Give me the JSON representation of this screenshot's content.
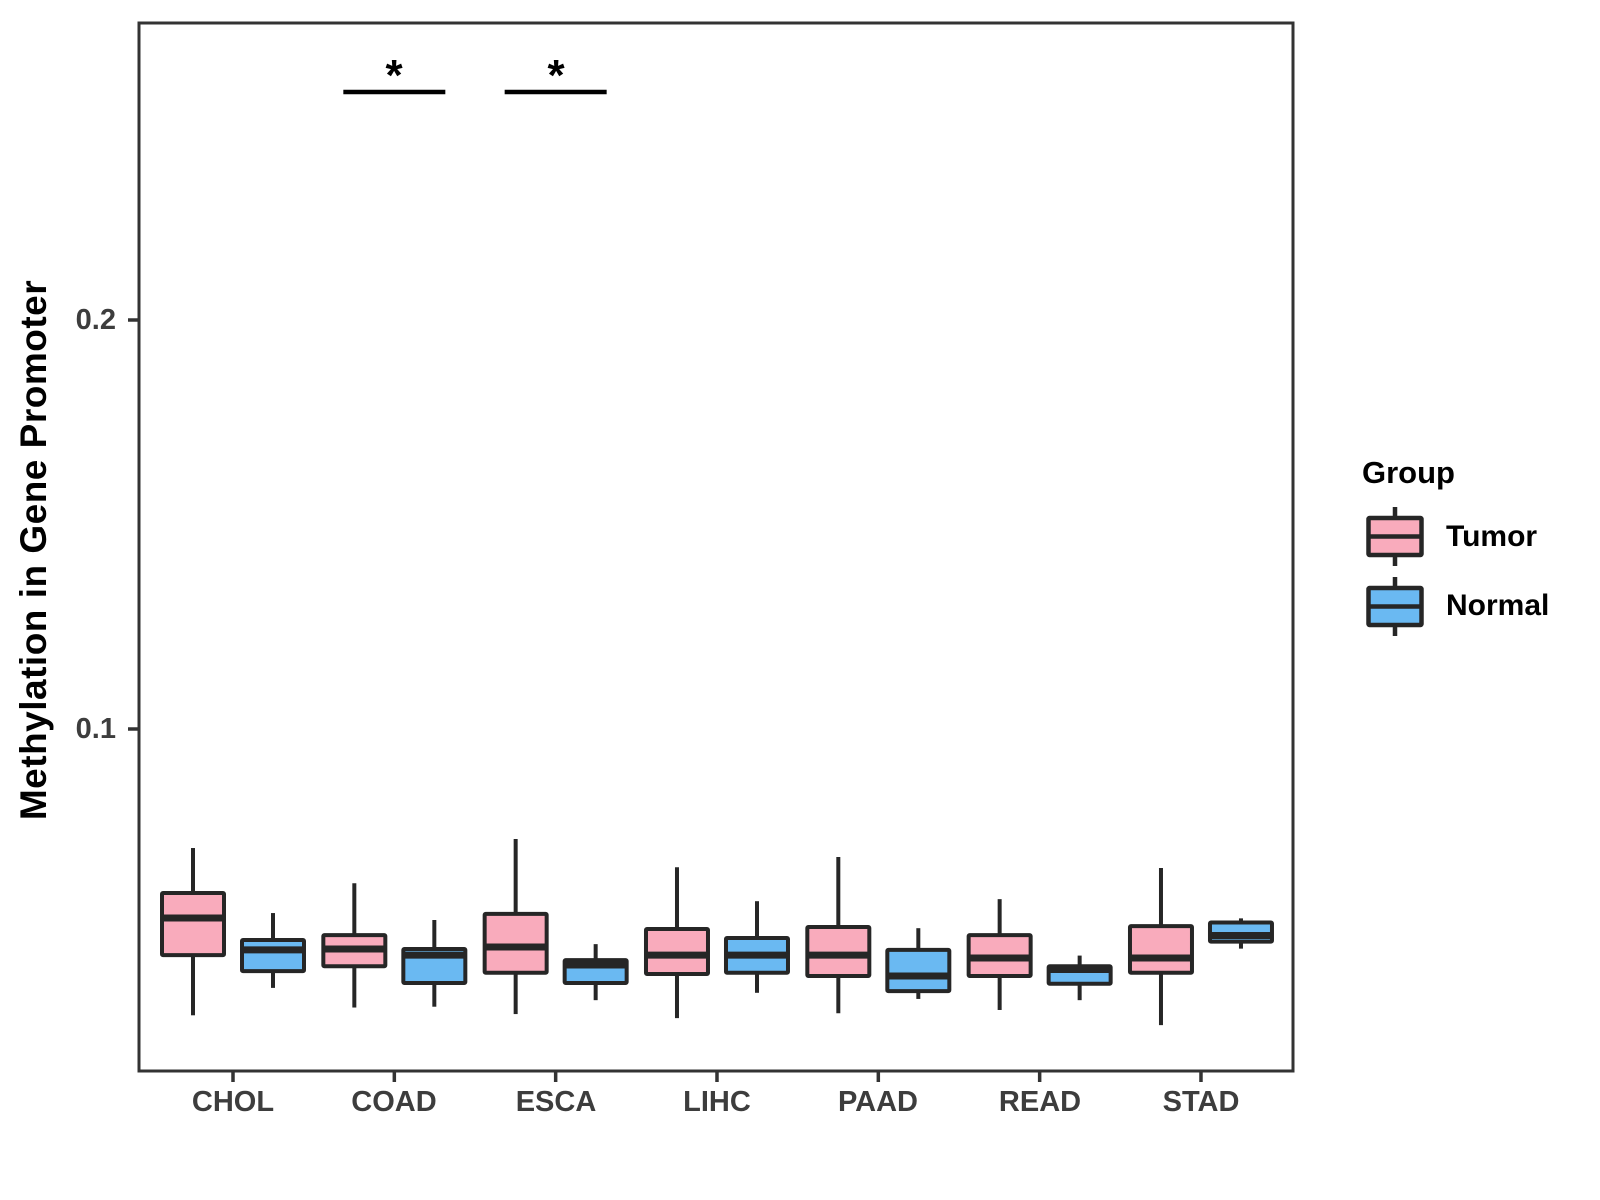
{
  "chart_data": {
    "type": "boxplot",
    "title": "",
    "xlabel": "",
    "ylabel": "Methylation in Gene Promoter",
    "categories": [
      "CHOL",
      "COAD",
      "ESCA",
      "LIHC",
      "PAAD",
      "READ",
      "STAD"
    ],
    "y_ticks": [
      0.1,
      0.2
    ],
    "y_tick_labels": [
      "0.1",
      "0.2"
    ],
    "y_range": [
      0.016,
      0.273
    ],
    "grid": "off",
    "legend": {
      "title": "Group",
      "position": "right"
    },
    "groups": [
      {
        "name": "Tumor",
        "color": "#F9ABBC"
      },
      {
        "name": "Normal",
        "color": "#6AB9F2"
      }
    ],
    "series": [
      {
        "name": "Tumor",
        "boxes": [
          {
            "category": "CHOL",
            "low": 0.03,
            "q1": 0.0447,
            "median": 0.0538,
            "q3": 0.0599,
            "high": 0.0709
          },
          {
            "category": "COAD",
            "low": 0.0319,
            "q1": 0.042,
            "median": 0.0462,
            "q3": 0.0496,
            "high": 0.0623
          },
          {
            "category": "ESCA",
            "low": 0.0303,
            "q1": 0.0404,
            "median": 0.0467,
            "q3": 0.0548,
            "high": 0.0731
          },
          {
            "category": "LIHC",
            "low": 0.0293,
            "q1": 0.0401,
            "median": 0.0447,
            "q3": 0.0511,
            "high": 0.0662
          },
          {
            "category": "PAAD",
            "low": 0.0305,
            "q1": 0.0396,
            "median": 0.0447,
            "q3": 0.0516,
            "high": 0.0687
          },
          {
            "category": "READ",
            "low": 0.0313,
            "q1": 0.0396,
            "median": 0.044,
            "q3": 0.0496,
            "high": 0.0584
          },
          {
            "category": "STAD",
            "low": 0.0276,
            "q1": 0.0404,
            "median": 0.044,
            "q3": 0.0518,
            "high": 0.066
          }
        ]
      },
      {
        "name": "Normal",
        "boxes": [
          {
            "category": "CHOL",
            "low": 0.0367,
            "q1": 0.0408,
            "median": 0.046,
            "q3": 0.0484,
            "high": 0.055
          },
          {
            "category": "COAD",
            "low": 0.0321,
            "q1": 0.0379,
            "median": 0.0447,
            "q3": 0.0462,
            "high": 0.0533
          },
          {
            "category": "ESCA",
            "low": 0.0337,
            "q1": 0.0379,
            "median": 0.0423,
            "q3": 0.0435,
            "high": 0.0474
          },
          {
            "category": "LIHC",
            "low": 0.0355,
            "q1": 0.0404,
            "median": 0.0447,
            "q3": 0.0489,
            "high": 0.0579
          },
          {
            "category": "PAAD",
            "low": 0.034,
            "q1": 0.0359,
            "median": 0.0396,
            "q3": 0.046,
            "high": 0.0513
          },
          {
            "category": "READ",
            "low": 0.0337,
            "q1": 0.0377,
            "median": 0.0412,
            "q3": 0.042,
            "high": 0.0446
          },
          {
            "category": "STAD",
            "low": 0.0463,
            "q1": 0.048,
            "median": 0.0495,
            "q3": 0.0527,
            "high": 0.0537
          }
        ]
      }
    ],
    "significance": [
      {
        "category": "COAD",
        "label": "*"
      },
      {
        "category": "ESCA",
        "label": "*"
      }
    ],
    "style": {
      "box_border": "#262626",
      "panel_border": "#333333",
      "axis_text": "#3D3D3D",
      "significance_color": "#000000"
    }
  }
}
